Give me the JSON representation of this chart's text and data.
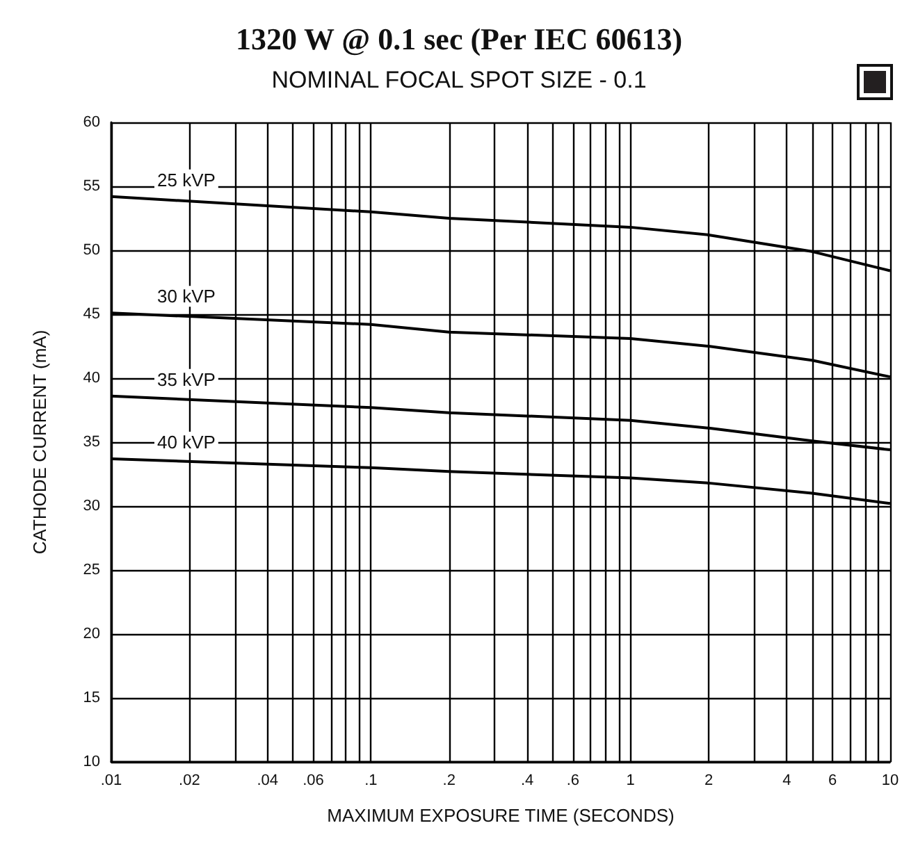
{
  "chart_data": {
    "type": "line",
    "title": "1320 W @ 0.1 sec (Per IEC 60613)",
    "subtitle": "NOMINAL FOCAL SPOT SIZE - 0.1",
    "xlabel": "MAXIMUM EXPOSURE TIME (SECONDS)",
    "ylabel": "CATHODE CURRENT (mA)",
    "x": [
      0.01,
      0.1,
      0.2,
      1,
      2,
      5,
      10
    ],
    "series": [
      {
        "name": "25 kVP",
        "color": "#000000",
        "values": [
          54.2,
          53.0,
          52.5,
          51.8,
          51.2,
          49.9,
          48.4
        ]
      },
      {
        "name": "30 kVP",
        "color": "#000000",
        "values": [
          45.1,
          44.2,
          43.6,
          43.1,
          42.5,
          41.4,
          40.1
        ]
      },
      {
        "name": "35 kVP",
        "color": "#000000",
        "values": [
          38.6,
          37.7,
          37.3,
          36.7,
          36.1,
          35.1,
          34.4
        ]
      },
      {
        "name": "40 kVP",
        "color": "#000000",
        "values": [
          33.7,
          33.0,
          32.7,
          32.2,
          31.8,
          31.0,
          30.2
        ]
      }
    ],
    "xlim": [
      0.01,
      10
    ],
    "xticks": [
      {
        "value": 0.01,
        "label": ".01"
      },
      {
        "value": 0.02,
        "label": ".02"
      },
      {
        "value": 0.03,
        "label": null
      },
      {
        "value": 0.04,
        "label": ".04"
      },
      {
        "value": 0.05,
        "label": null
      },
      {
        "value": 0.06,
        "label": ".06"
      },
      {
        "value": 0.07,
        "label": null
      },
      {
        "value": 0.08,
        "label": null
      },
      {
        "value": 0.09,
        "label": null
      },
      {
        "value": 0.1,
        "label": ".1"
      },
      {
        "value": 0.2,
        "label": ".2"
      },
      {
        "value": 0.3,
        "label": null
      },
      {
        "value": 0.4,
        "label": ".4"
      },
      {
        "value": 0.5,
        "label": null
      },
      {
        "value": 0.6,
        "label": ".6"
      },
      {
        "value": 0.7,
        "label": null
      },
      {
        "value": 0.8,
        "label": null
      },
      {
        "value": 0.9,
        "label": null
      },
      1,
      2,
      {
        "value": 3,
        "label": null
      },
      4,
      {
        "value": 5,
        "label": null
      },
      6,
      {
        "value": 7,
        "label": null
      },
      {
        "value": 8,
        "label": null
      },
      {
        "value": 9,
        "label": null
      },
      10
    ],
    "ylim": [
      10,
      60
    ],
    "yticks": [
      10,
      15,
      20,
      25,
      30,
      35,
      40,
      45,
      50,
      55,
      60
    ],
    "log": "x",
    "grid": true,
    "legend": false,
    "marker": "none",
    "line_style": "solid"
  }
}
